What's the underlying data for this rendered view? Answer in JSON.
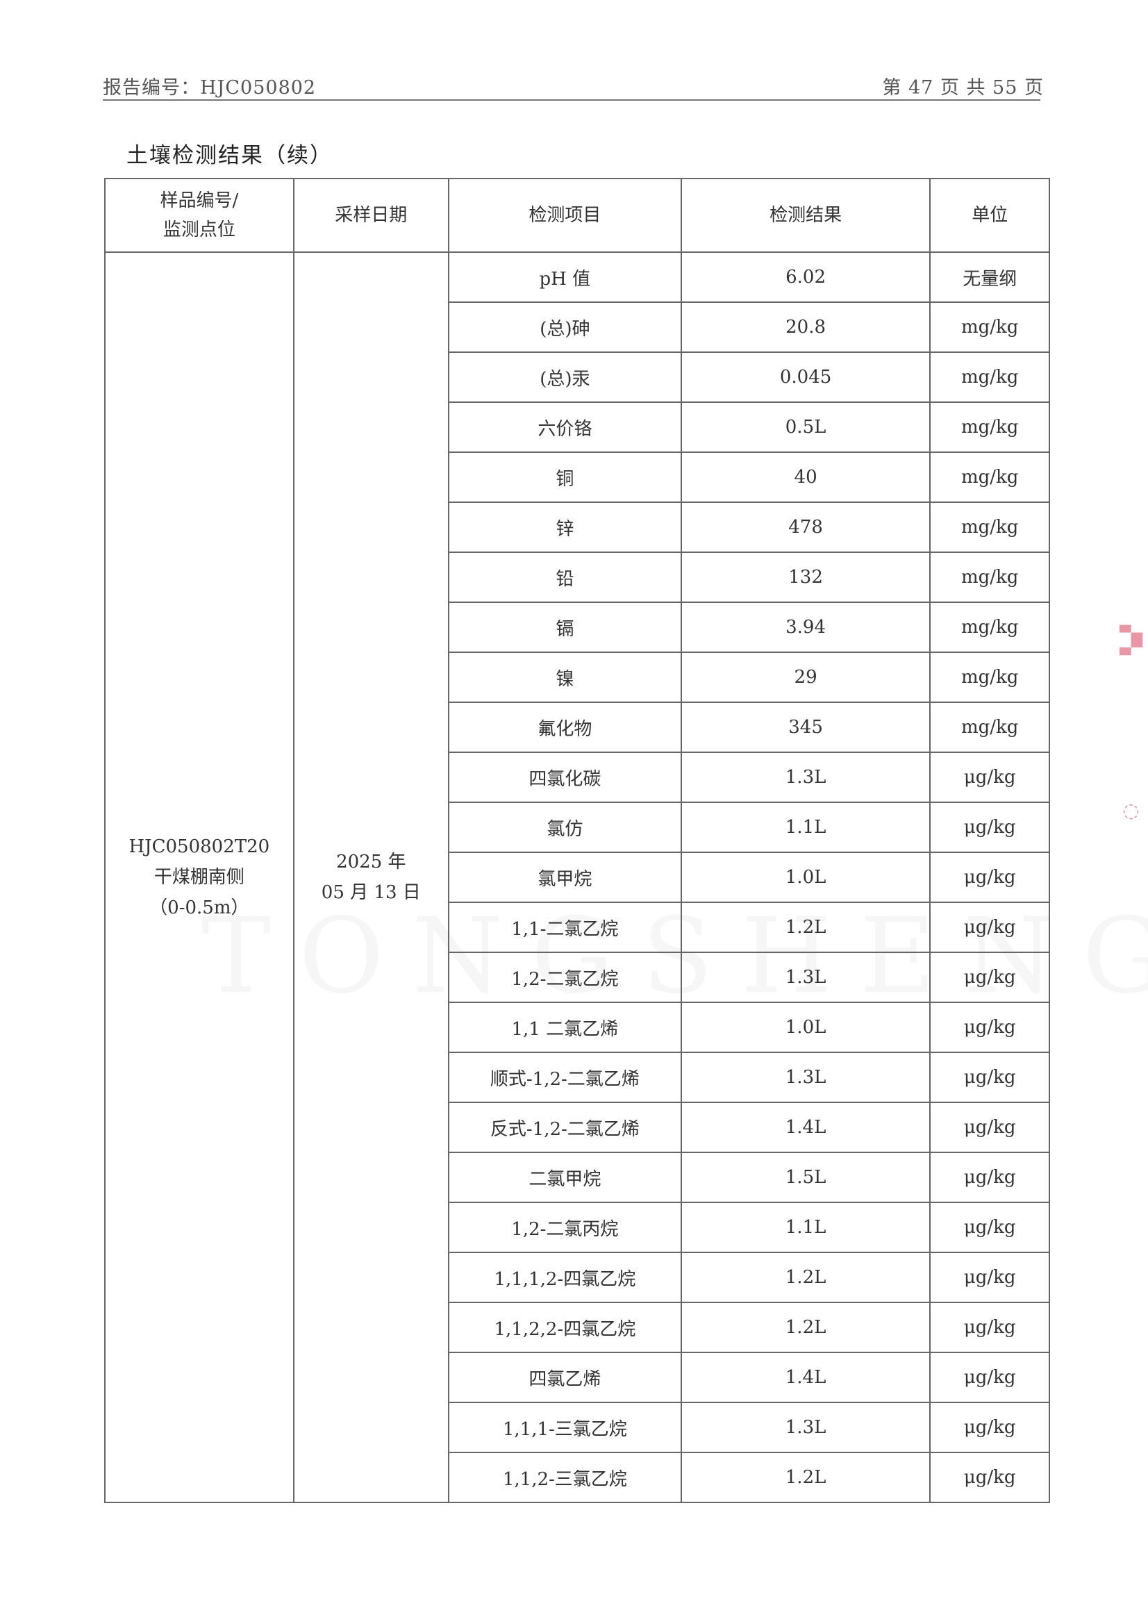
{
  "header": {
    "report_no": "报告编号：HJC050802",
    "page": "第 47 页 共 55 页"
  },
  "title": "土壤检测结果（续）",
  "watermark": "TONGSHENG",
  "table": {
    "columns": [
      "样品编号/\n监测点位",
      "采样日期",
      "检测项目",
      "检测结果",
      "单位"
    ],
    "sample": {
      "id": "HJC050802T20",
      "location": "干煤棚南侧",
      "depth": "（0-0.5m）"
    },
    "date": {
      "year": "2025 年",
      "day": "05 月 13 日"
    },
    "rows": [
      {
        "item": "pH 值",
        "result": "6.02",
        "unit": "无量纲"
      },
      {
        "item": "(总)砷",
        "result": "20.8",
        "unit": "mg/kg"
      },
      {
        "item": "(总)汞",
        "result": "0.045",
        "unit": "mg/kg"
      },
      {
        "item": "六价铬",
        "result": "0.5L",
        "unit": "mg/kg"
      },
      {
        "item": "铜",
        "result": "40",
        "unit": "mg/kg"
      },
      {
        "item": "锌",
        "result": "478",
        "unit": "mg/kg"
      },
      {
        "item": "铅",
        "result": "132",
        "unit": "mg/kg"
      },
      {
        "item": "镉",
        "result": "3.94",
        "unit": "mg/kg"
      },
      {
        "item": "镍",
        "result": "29",
        "unit": "mg/kg"
      },
      {
        "item": "氟化物",
        "result": "345",
        "unit": "mg/kg"
      },
      {
        "item": "四氯化碳",
        "result": "1.3L",
        "unit": "μg/kg"
      },
      {
        "item": "氯仿",
        "result": "1.1L",
        "unit": "μg/kg"
      },
      {
        "item": "氯甲烷",
        "result": "1.0L",
        "unit": "μg/kg"
      },
      {
        "item": "1,1-二氯乙烷",
        "result": "1.2L",
        "unit": "μg/kg"
      },
      {
        "item": "1,2-二氯乙烷",
        "result": "1.3L",
        "unit": "μg/kg"
      },
      {
        "item": "1,1 二氯乙烯",
        "result": "1.0L",
        "unit": "μg/kg"
      },
      {
        "item": "顺式-1,2-二氯乙烯",
        "result": "1.3L",
        "unit": "μg/kg"
      },
      {
        "item": "反式-1,2-二氯乙烯",
        "result": "1.4L",
        "unit": "μg/kg"
      },
      {
        "item": "二氯甲烷",
        "result": "1.5L",
        "unit": "μg/kg"
      },
      {
        "item": "1,2-二氯丙烷",
        "result": "1.1L",
        "unit": "μg/kg"
      },
      {
        "item": "1,1,1,2-四氯乙烷",
        "result": "1.2L",
        "unit": "μg/kg"
      },
      {
        "item": "1,1,2,2-四氯乙烷",
        "result": "1.2L",
        "unit": "μg/kg"
      },
      {
        "item": "四氯乙烯",
        "result": "1.4L",
        "unit": "μg/kg"
      },
      {
        "item": "1,1,1-三氯乙烷",
        "result": "1.3L",
        "unit": "μg/kg"
      },
      {
        "item": "1,1,2-三氯乙烷",
        "result": "1.2L",
        "unit": "μg/kg"
      }
    ]
  }
}
